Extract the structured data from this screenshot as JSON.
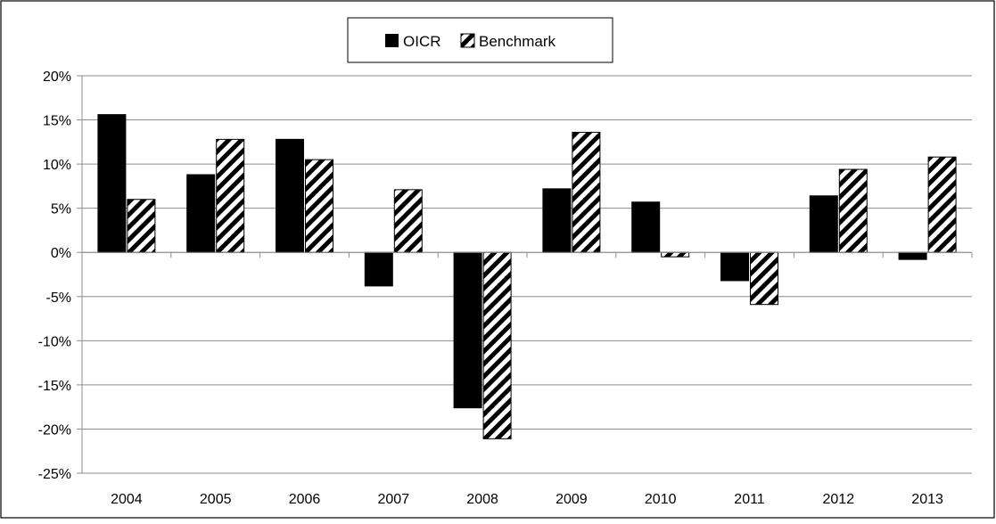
{
  "chart_data": {
    "type": "bar",
    "title": "",
    "xlabel": "",
    "ylabel": "",
    "categories": [
      "2004",
      "2005",
      "2006",
      "2007",
      "2008",
      "2009",
      "2010",
      "2011",
      "2012",
      "2013"
    ],
    "series": [
      {
        "name": "OICR",
        "fill": "solid",
        "color": "#000000",
        "values": [
          15.6,
          8.8,
          12.8,
          -3.8,
          -17.6,
          7.2,
          5.7,
          -3.2,
          6.4,
          -0.8
        ]
      },
      {
        "name": "Benchmark",
        "fill": "diagonal-hatch",
        "color": "#000000",
        "values": [
          6.0,
          12.8,
          10.5,
          7.1,
          -21.1,
          13.6,
          -0.5,
          -5.9,
          9.4,
          10.8
        ]
      }
    ],
    "ylim": [
      -25,
      20
    ],
    "yticks": [
      20,
      15,
      10,
      5,
      0,
      -5,
      -10,
      -15,
      -20,
      -25
    ],
    "ytick_format": "percent",
    "grid": true,
    "legend_position": "top-center"
  }
}
